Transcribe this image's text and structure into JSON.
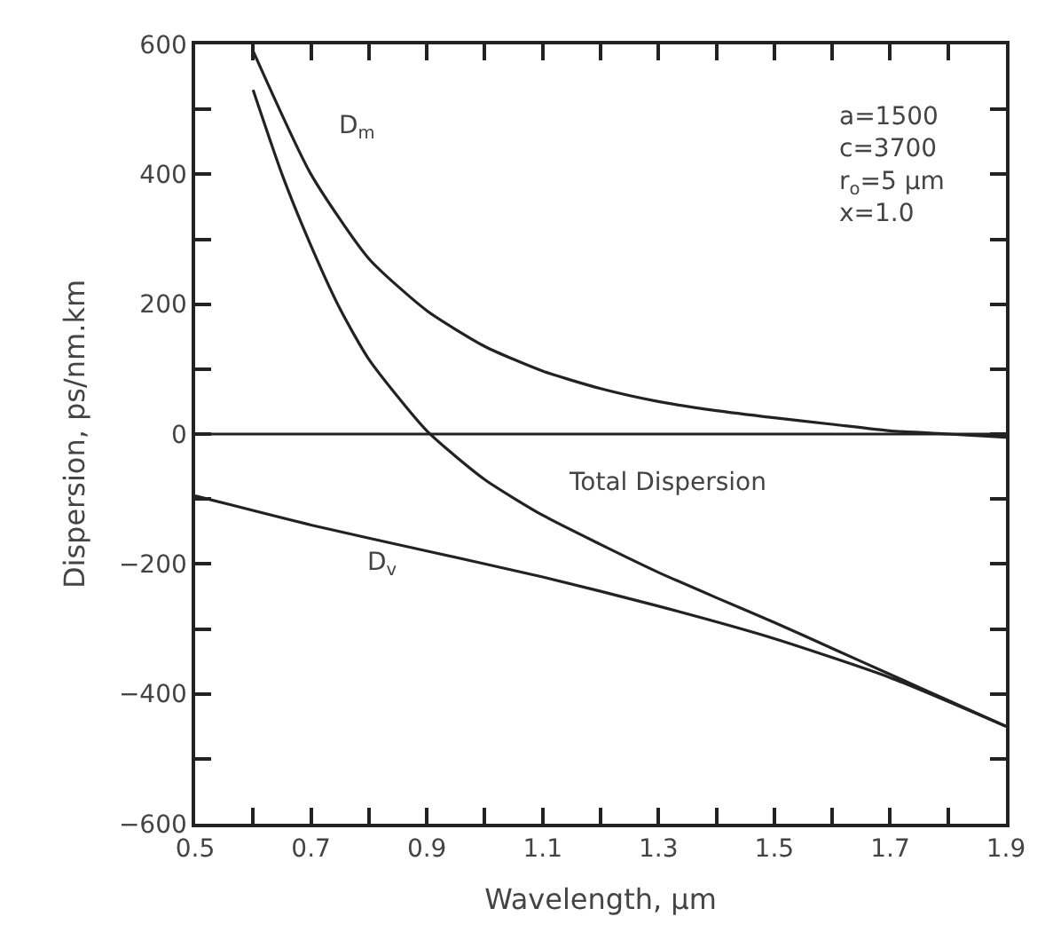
{
  "chart_data": {
    "type": "line",
    "xlabel": "Wavelength, μm",
    "ylabel": "Dispersion, ps/nm.km",
    "xlim": [
      0.5,
      1.9
    ],
    "xticks": [
      0.5,
      {
        "value": 0.6,
        "label": null
      },
      0.7,
      {
        "value": 0.8,
        "label": null
      },
      0.9,
      {
        "value": 1.0,
        "label": null
      },
      1.1,
      {
        "value": 1.2,
        "label": null
      },
      1.3,
      {
        "value": 1.4,
        "label": null
      },
      1.5,
      {
        "value": 1.6,
        "label": null
      },
      1.7,
      {
        "value": 1.8,
        "label": null
      },
      1.9
    ],
    "ylim": [
      -600,
      600
    ],
    "yticks": [
      -600,
      {
        "value": -500,
        "label": null
      },
      -400,
      {
        "value": -300,
        "label": null
      },
      -200,
      {
        "value": -100,
        "label": null
      },
      0,
      {
        "value": 100,
        "label": null
      },
      200,
      {
        "value": 300,
        "label": null
      },
      400,
      {
        "value": 500,
        "label": null
      },
      600
    ],
    "legend": false,
    "marker": "none",
    "line_style": "solid",
    "ref_lines": [
      {
        "axis": "y",
        "value": 0,
        "color": "#222222"
      }
    ],
    "annotations": [
      "a=1500",
      "c=3700",
      "r$_{o}$=5 μm",
      "x=1.0"
    ],
    "series": [
      {
        "name": "D$_{m}$",
        "color": "#222222",
        "x": [
          0.6,
          0.7,
          0.8,
          0.9,
          1.0,
          1.1,
          1.2,
          1.3,
          1.4,
          1.5,
          1.6,
          1.7,
          1.8,
          1.9
        ],
        "values": [
          590,
          400,
          270,
          190,
          135,
          97,
          70,
          50,
          36,
          25,
          15,
          5,
          0,
          -5
        ]
      },
      {
        "name": "Total Dispersion",
        "color": "#222222",
        "x": [
          0.6,
          0.65,
          0.7,
          0.75,
          0.8,
          0.9,
          1.0,
          1.1,
          1.2,
          1.3,
          1.4,
          1.5,
          1.6,
          1.7,
          1.8,
          1.9
        ],
        "values": [
          530,
          400,
          290,
          193,
          115,
          5,
          -70,
          -125,
          -170,
          -213,
          -252,
          -290,
          -330,
          -370,
          -410,
          -450
        ]
      },
      {
        "name": "D$_{v}$",
        "color": "#222222",
        "x": [
          0.5,
          0.7,
          0.9,
          1.1,
          1.3,
          1.5,
          1.7,
          1.9
        ],
        "values": [
          -95,
          -140,
          -180,
          -220,
          -265,
          -315,
          -375,
          -450
        ]
      }
    ]
  }
}
